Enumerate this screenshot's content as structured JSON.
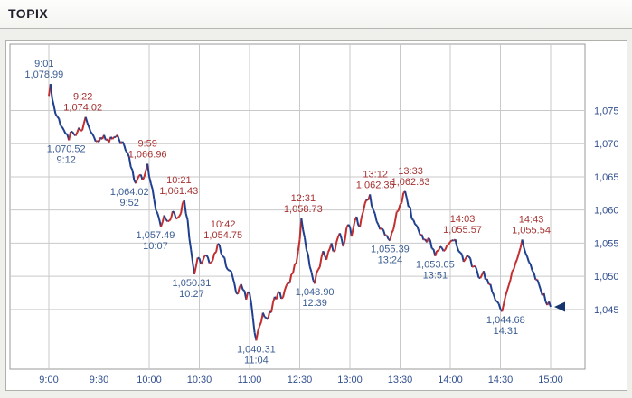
{
  "header": {
    "title": "TOPIX"
  },
  "chart_data": {
    "type": "line",
    "title": "TOPIX",
    "subtitle": "Intraday 1-minute price chart (Tokyo session, lunch break 11:30-12:30 compressed out of axis)",
    "x_ticks": [
      "9:00",
      "9:30",
      "10:00",
      "10:30",
      "11:00",
      "12:30",
      "13:00",
      "13:30",
      "14:00",
      "14:30",
      "15:00"
    ],
    "x_tick_minutes": [
      0,
      30,
      60,
      90,
      120,
      150,
      180,
      210,
      240,
      270,
      300
    ],
    "xlim_minutes": [
      0,
      300
    ],
    "y_ticks": [
      {
        "value": 1075,
        "label": "1,075"
      },
      {
        "value": 1070,
        "label": "1,070"
      },
      {
        "value": 1065,
        "label": "1,065"
      },
      {
        "value": 1060,
        "label": "1,060"
      },
      {
        "value": 1055,
        "label": "1,055"
      },
      {
        "value": 1050,
        "label": "1,050"
      },
      {
        "value": 1045,
        "label": "1,045"
      }
    ],
    "ylim": [
      1036,
      1085
    ],
    "grid": true,
    "legend": "none",
    "series": [
      {
        "name": "TOPIX",
        "style": "colored-by-direction",
        "keypoints": [
          [
            0,
            1077.2
          ],
          [
            1,
            1078.99
          ],
          [
            2,
            1076.8
          ],
          [
            4,
            1074.5
          ],
          [
            6,
            1073.8
          ],
          [
            8,
            1072.5
          ],
          [
            10,
            1071.5
          ],
          [
            12,
            1070.52
          ],
          [
            14,
            1071.8
          ],
          [
            16,
            1071.2
          ],
          [
            18,
            1072.4
          ],
          [
            20,
            1072.0
          ],
          [
            22,
            1074.02
          ],
          [
            24,
            1072.5
          ],
          [
            27,
            1071.0
          ],
          [
            30,
            1070.3
          ],
          [
            33,
            1071.3
          ],
          [
            36,
            1070.2
          ],
          [
            39,
            1071.0
          ],
          [
            42,
            1070.6
          ],
          [
            45,
            1069.8
          ],
          [
            48,
            1068.0
          ],
          [
            50,
            1066.0
          ],
          [
            52,
            1064.02
          ],
          [
            54,
            1065.2
          ],
          [
            56,
            1064.5
          ],
          [
            59,
            1066.96
          ],
          [
            61,
            1064.0
          ],
          [
            63,
            1061.5
          ],
          [
            65,
            1059.5
          ],
          [
            67,
            1057.49
          ],
          [
            69,
            1059.2
          ],
          [
            71,
            1058.3
          ],
          [
            74,
            1059.8
          ],
          [
            77,
            1058.8
          ],
          [
            81,
            1061.43
          ],
          [
            83,
            1058.5
          ],
          [
            85,
            1054.0
          ],
          [
            87,
            1050.31
          ],
          [
            89,
            1052.8
          ],
          [
            91,
            1051.8
          ],
          [
            94,
            1053.2
          ],
          [
            96,
            1052.0
          ],
          [
            99,
            1053.5
          ],
          [
            102,
            1054.75
          ],
          [
            104,
            1053.0
          ],
          [
            107,
            1051.0
          ],
          [
            110,
            1049.8
          ],
          [
            112,
            1047.5
          ],
          [
            115,
            1048.8
          ],
          [
            118,
            1046.5
          ],
          [
            120,
            1047.5
          ],
          [
            122,
            1043.8
          ],
          [
            124,
            1040.31
          ],
          [
            126,
            1042.5
          ],
          [
            128,
            1044.5
          ],
          [
            131,
            1043.5
          ],
          [
            134,
            1046.0
          ],
          [
            137,
            1047.5
          ],
          [
            140,
            1046.8
          ],
          [
            143,
            1049.0
          ],
          [
            146,
            1050.5
          ],
          [
            148,
            1052.0
          ],
          [
            150,
            1055.5
          ],
          [
            151,
            1058.73
          ],
          [
            152,
            1057.0
          ],
          [
            154,
            1054.0
          ],
          [
            156,
            1051.5
          ],
          [
            159,
            1048.9
          ],
          [
            161,
            1051.0
          ],
          [
            164,
            1053.8
          ],
          [
            166,
            1052.5
          ],
          [
            169,
            1055.0
          ],
          [
            171,
            1053.8
          ],
          [
            174,
            1056.5
          ],
          [
            176,
            1054.5
          ],
          [
            179,
            1057.8
          ],
          [
            181,
            1056.0
          ],
          [
            184,
            1059.0
          ],
          [
            186,
            1057.5
          ],
          [
            189,
            1061.0
          ],
          [
            192,
            1062.35
          ],
          [
            194,
            1060.0
          ],
          [
            197,
            1057.8
          ],
          [
            200,
            1057.0
          ],
          [
            202,
            1056.2
          ],
          [
            204,
            1055.39
          ],
          [
            207,
            1058.3
          ],
          [
            210,
            1060.8
          ],
          [
            213,
            1062.83
          ],
          [
            215,
            1060.5
          ],
          [
            218,
            1058.5
          ],
          [
            221,
            1057.0
          ],
          [
            224,
            1055.5
          ],
          [
            227,
            1055.8
          ],
          [
            229,
            1054.2
          ],
          [
            231,
            1053.05
          ],
          [
            234,
            1054.5
          ],
          [
            236,
            1053.8
          ],
          [
            239,
            1054.8
          ],
          [
            243,
            1055.57
          ],
          [
            245,
            1053.8
          ],
          [
            248,
            1052.2
          ],
          [
            251,
            1053.0
          ],
          [
            254,
            1051.5
          ],
          [
            257,
            1049.8
          ],
          [
            260,
            1050.8
          ],
          [
            263,
            1048.8
          ],
          [
            266,
            1047.2
          ],
          [
            268,
            1046.2
          ],
          [
            271,
            1044.68
          ],
          [
            273,
            1047.0
          ],
          [
            276,
            1049.5
          ],
          [
            279,
            1052.0
          ],
          [
            281,
            1053.5
          ],
          [
            283,
            1055.54
          ],
          [
            285,
            1053.5
          ],
          [
            288,
            1051.8
          ],
          [
            291,
            1049.5
          ],
          [
            294,
            1048.0
          ],
          [
            297,
            1046.2
          ],
          [
            300,
            1045.4
          ]
        ]
      }
    ],
    "annotations": [
      {
        "lines": [
          "9:01",
          "1,078.99"
        ],
        "minute": 1,
        "price": 1078.99,
        "placement": "above",
        "color": "blue",
        "dx": -7
      },
      {
        "lines": [
          "9:22",
          "1,074.02"
        ],
        "minute": 22,
        "price": 1074.02,
        "placement": "above",
        "color": "red",
        "dx": -3
      },
      {
        "lines": [
          "1,070.52",
          "9:12"
        ],
        "minute": 12,
        "price": 1070.52,
        "placement": "below",
        "color": "blue",
        "dx": -3
      },
      {
        "lines": [
          "9:59",
          "1,066.96"
        ],
        "minute": 59,
        "price": 1066.96,
        "placement": "above",
        "color": "red",
        "dx": 0
      },
      {
        "lines": [
          "1,064.02",
          "9:52"
        ],
        "minute": 52,
        "price": 1064.02,
        "placement": "below",
        "color": "blue",
        "dx": -7
      },
      {
        "lines": [
          "10:21",
          "1,061.43"
        ],
        "minute": 81,
        "price": 1061.43,
        "placement": "above",
        "color": "red",
        "dx": -6
      },
      {
        "lines": [
          "1,057.49",
          "10:07"
        ],
        "minute": 67,
        "price": 1057.49,
        "placement": "below",
        "color": "blue",
        "dx": -6
      },
      {
        "lines": [
          "10:42",
          "1,054.75"
        ],
        "minute": 102,
        "price": 1054.75,
        "placement": "above",
        "color": "red",
        "dx": 4
      },
      {
        "lines": [
          "1,050.31",
          "10:27"
        ],
        "minute": 87,
        "price": 1050.31,
        "placement": "below",
        "color": "blue",
        "dx": -3
      },
      {
        "lines": [
          "1,040.31",
          "11:04"
        ],
        "minute": 124,
        "price": 1040.31,
        "placement": "below",
        "color": "blue",
        "dx": 0
      },
      {
        "lines": [
          "12:31",
          "1,058.73"
        ],
        "minute": 151,
        "price": 1058.73,
        "placement": "above",
        "color": "red",
        "dx": 2
      },
      {
        "lines": [
          "1,048.90",
          "12:39"
        ],
        "minute": 159,
        "price": 1048.9,
        "placement": "below",
        "color": "blue",
        "dx": 0
      },
      {
        "lines": [
          "13:12",
          "1,062.35"
        ],
        "minute": 192,
        "price": 1062.35,
        "placement": "above",
        "color": "red",
        "dx": 6
      },
      {
        "lines": [
          "13:33",
          "1,062.83"
        ],
        "minute": 213,
        "price": 1062.83,
        "placement": "above",
        "color": "red",
        "dx": 6
      },
      {
        "lines": [
          "1,055.39",
          "13:24"
        ],
        "minute": 204,
        "price": 1055.39,
        "placement": "below",
        "color": "blue",
        "dx": 0
      },
      {
        "lines": [
          "14:03",
          "1,055.57"
        ],
        "minute": 243,
        "price": 1055.57,
        "placement": "above",
        "color": "red",
        "dx": 8
      },
      {
        "lines": [
          "1,053.05",
          "13:51"
        ],
        "minute": 231,
        "price": 1053.05,
        "placement": "below",
        "color": "blue",
        "dx": 0
      },
      {
        "lines": [
          "14:43",
          "1,055.54"
        ],
        "minute": 283,
        "price": 1055.54,
        "placement": "above",
        "color": "red",
        "dx": 10
      },
      {
        "lines": [
          "1,044.68",
          "14:31"
        ],
        "minute": 271,
        "price": 1044.68,
        "placement": "below",
        "color": "blue",
        "dx": 4
      }
    ],
    "end_marker": {
      "minute": 300,
      "price": 1045.4,
      "shape": "left-triangle"
    },
    "colors": {
      "up": "#c22e2e",
      "down": "#1e3f8f",
      "annotation_red": "#a63232",
      "annotation_blue": "#3c5e93",
      "axis_label": "#33518f",
      "grid": "#c9c9c9",
      "plot_border": "#9a9a9a",
      "marker": "#16356f"
    }
  }
}
